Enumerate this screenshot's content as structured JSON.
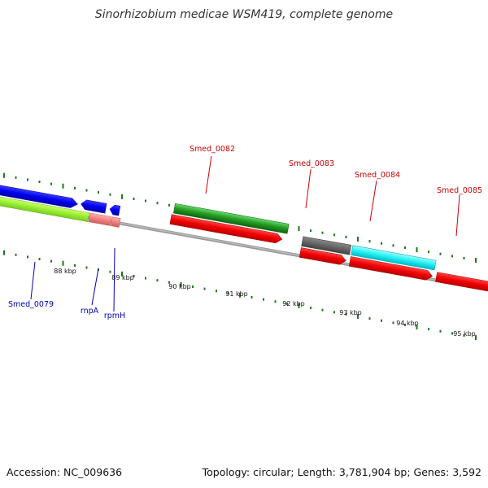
{
  "map": {
    "title": "Sinorhizobium medicae WSM419, complete genome",
    "accession_text": "Accession: NC_009636",
    "summary_text": "Topology: circular; Length: 3,781,904 bp; Genes: 3,592"
  },
  "colors": {
    "backbone": "#888888",
    "gc_tick": "#1a7a1a",
    "forward_label": "#cc0000",
    "reverse_label": "#0000bb"
  },
  "scale": {
    "ticks": [
      {
        "label": "88 kbp",
        "kbp": 88
      },
      {
        "label": "89 kbp",
        "kbp": 89
      },
      {
        "label": "90 kbp",
        "kbp": 90
      },
      {
        "label": "91 kbp",
        "kbp": 91
      },
      {
        "label": "92 kbp",
        "kbp": 92
      },
      {
        "label": "93 kbp",
        "kbp": 93
      },
      {
        "label": "94 kbp",
        "kbp": 94
      },
      {
        "label": "95 kbp",
        "kbp": 95
      }
    ]
  },
  "labels": {
    "smed_0082": "Smed_0082",
    "smed_0083": "Smed_0083",
    "smed_0084": "Smed_0084",
    "smed_0085": "Smed_0085",
    "smed_0079": "Smed_0079",
    "rnpA": "rnpA",
    "rpmH": "rpmH"
  }
}
